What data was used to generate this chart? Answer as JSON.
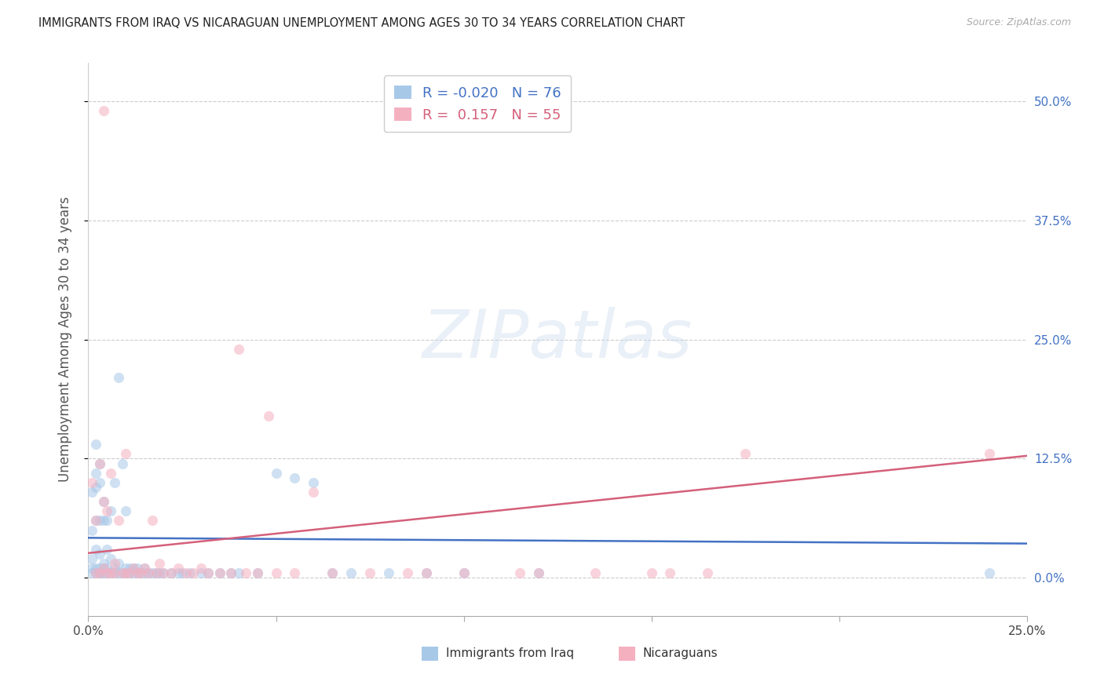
{
  "title": "IMMIGRANTS FROM IRAQ VS NICARAGUAN UNEMPLOYMENT AMONG AGES 30 TO 34 YEARS CORRELATION CHART",
  "source": "Source: ZipAtlas.com",
  "ylabel": "Unemployment Among Ages 30 to 34 years",
  "xlim": [
    0.0,
    0.25
  ],
  "ylim": [
    -0.04,
    0.54
  ],
  "yticks": [
    0.0,
    0.125,
    0.25,
    0.375,
    0.5
  ],
  "ytick_labels_right": [
    "0.0%",
    "12.5%",
    "25.0%",
    "37.5%",
    "50.0%"
  ],
  "xticks": [
    0.0,
    0.05,
    0.1,
    0.15,
    0.2,
    0.25
  ],
  "xtick_labels": [
    "0.0%",
    "",
    "",
    "",
    "",
    "25.0%"
  ],
  "legend_R_blue": "-0.020",
  "legend_N_blue": "76",
  "legend_R_pink": " 0.157",
  "legend_N_pink": "55",
  "blue_color": "#a8c8e8",
  "pink_color": "#f5b0c0",
  "blue_line_color": "#4472c4",
  "pink_line_color": "#d4607a",
  "right_tick_color": "#4472c4",
  "watermark_text": "ZIPatlas",
  "blue_scatter_x": [
    0.001,
    0.001,
    0.001,
    0.001,
    0.001,
    0.002,
    0.002,
    0.002,
    0.002,
    0.002,
    0.002,
    0.002,
    0.003,
    0.003,
    0.003,
    0.003,
    0.003,
    0.003,
    0.003,
    0.004,
    0.004,
    0.004,
    0.004,
    0.004,
    0.005,
    0.005,
    0.005,
    0.005,
    0.006,
    0.006,
    0.006,
    0.007,
    0.007,
    0.007,
    0.008,
    0.008,
    0.008,
    0.009,
    0.009,
    0.01,
    0.01,
    0.01,
    0.011,
    0.011,
    0.012,
    0.012,
    0.013,
    0.013,
    0.014,
    0.015,
    0.015,
    0.016,
    0.017,
    0.018,
    0.019,
    0.02,
    0.022,
    0.024,
    0.025,
    0.027,
    0.03,
    0.032,
    0.035,
    0.038,
    0.04,
    0.045,
    0.05,
    0.055,
    0.06,
    0.065,
    0.07,
    0.08,
    0.09,
    0.1,
    0.12,
    0.24
  ],
  "blue_scatter_y": [
    0.005,
    0.01,
    0.02,
    0.05,
    0.09,
    0.005,
    0.01,
    0.03,
    0.06,
    0.095,
    0.11,
    0.14,
    0.005,
    0.01,
    0.025,
    0.06,
    0.1,
    0.12,
    0.005,
    0.005,
    0.015,
    0.06,
    0.08,
    0.01,
    0.005,
    0.01,
    0.03,
    0.06,
    0.005,
    0.02,
    0.07,
    0.005,
    0.01,
    0.1,
    0.005,
    0.015,
    0.21,
    0.005,
    0.12,
    0.005,
    0.01,
    0.07,
    0.005,
    0.01,
    0.005,
    0.01,
    0.005,
    0.01,
    0.005,
    0.005,
    0.01,
    0.005,
    0.005,
    0.005,
    0.005,
    0.005,
    0.005,
    0.005,
    0.005,
    0.005,
    0.005,
    0.005,
    0.005,
    0.005,
    0.005,
    0.005,
    0.11,
    0.105,
    0.1,
    0.005,
    0.005,
    0.005,
    0.005,
    0.005,
    0.005,
    0.005
  ],
  "pink_scatter_x": [
    0.001,
    0.002,
    0.002,
    0.003,
    0.003,
    0.004,
    0.004,
    0.005,
    0.005,
    0.006,
    0.006,
    0.007,
    0.007,
    0.008,
    0.009,
    0.01,
    0.01,
    0.011,
    0.012,
    0.013,
    0.014,
    0.015,
    0.016,
    0.017,
    0.018,
    0.019,
    0.02,
    0.022,
    0.024,
    0.026,
    0.028,
    0.03,
    0.032,
    0.035,
    0.038,
    0.04,
    0.042,
    0.045,
    0.048,
    0.05,
    0.055,
    0.06,
    0.065,
    0.075,
    0.085,
    0.09,
    0.1,
    0.115,
    0.12,
    0.135,
    0.15,
    0.155,
    0.165,
    0.175,
    0.24
  ],
  "pink_scatter_y": [
    0.1,
    0.005,
    0.06,
    0.005,
    0.12,
    0.01,
    0.08,
    0.005,
    0.07,
    0.005,
    0.11,
    0.005,
    0.015,
    0.06,
    0.005,
    0.005,
    0.13,
    0.005,
    0.01,
    0.005,
    0.005,
    0.01,
    0.005,
    0.06,
    0.005,
    0.015,
    0.005,
    0.005,
    0.01,
    0.005,
    0.005,
    0.01,
    0.005,
    0.005,
    0.005,
    0.24,
    0.005,
    0.005,
    0.17,
    0.005,
    0.005,
    0.09,
    0.005,
    0.005,
    0.005,
    0.005,
    0.005,
    0.005,
    0.005,
    0.005,
    0.005,
    0.005,
    0.005,
    0.13,
    0.13
  ],
  "pink_outlier_x": [
    0.004
  ],
  "pink_outlier_y": [
    0.49
  ],
  "blue_line_x": [
    0.0,
    0.25
  ],
  "blue_line_y": [
    0.042,
    0.036
  ],
  "pink_line_x": [
    0.0,
    0.25
  ],
  "pink_line_y": [
    0.026,
    0.128
  ]
}
